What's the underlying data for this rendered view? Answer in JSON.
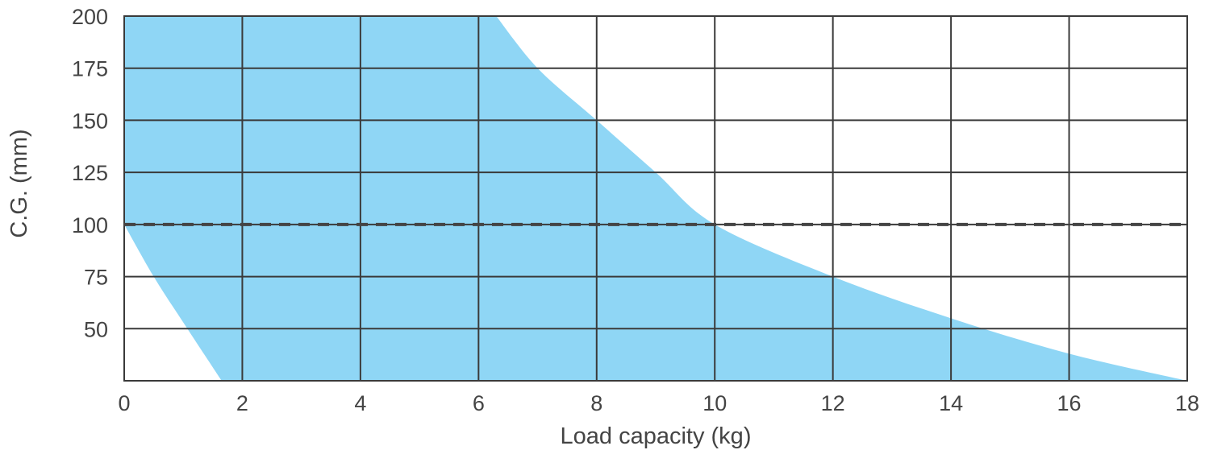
{
  "chart_data": {
    "type": "area",
    "title": "",
    "xlabel": "Load capacity (kg)",
    "ylabel": "C.G. (mm)",
    "xlim": [
      0,
      18
    ],
    "ylim": [
      25,
      200
    ],
    "x_ticks": [
      0,
      2,
      4,
      6,
      8,
      10,
      12,
      14,
      16,
      18
    ],
    "x_tick_labels": [
      "0",
      "2",
      "4",
      "6",
      "8",
      "10",
      "12",
      "14",
      "16",
      "18"
    ],
    "y_ticks": [
      50,
      75,
      100,
      125,
      150,
      175,
      200
    ],
    "y_tick_labels": [
      "50",
      "75",
      "100",
      "125",
      "150",
      "175",
      "200"
    ],
    "grid": true,
    "series": [
      {
        "type": "area",
        "fill_color": "#8fd6f5",
        "upper_boundary": [
          {
            "x": 0,
            "y": 200
          },
          {
            "x": 6.3,
            "y": 200
          },
          {
            "x": 7,
            "y": 175
          },
          {
            "x": 8,
            "y": 150
          },
          {
            "x": 9,
            "y": 125
          },
          {
            "x": 10,
            "y": 100
          },
          {
            "x": 12,
            "y": 75
          },
          {
            "x": 14,
            "y": 55
          },
          {
            "x": 16,
            "y": 38
          },
          {
            "x": 18,
            "y": 25
          }
        ],
        "lower_boundary": [
          {
            "x": 0,
            "y": 100
          },
          {
            "x": 0.5,
            "y": 75
          },
          {
            "x": 1,
            "y": 53
          },
          {
            "x": 1.65,
            "y": 25
          }
        ]
      }
    ],
    "reference_lines": [
      {
        "orientation": "horizontal",
        "y": 100,
        "style": "dashed",
        "color": "#444444"
      }
    ]
  }
}
